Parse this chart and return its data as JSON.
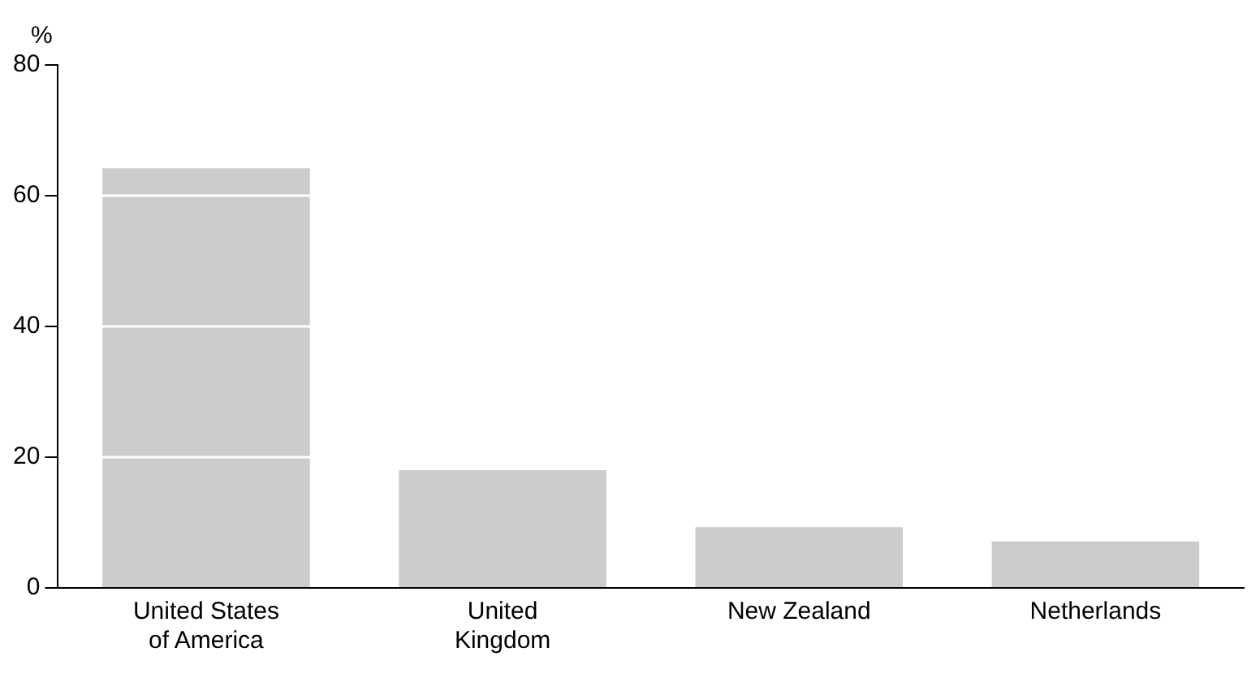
{
  "chart_data": {
    "type": "bar",
    "ylabel": "%",
    "categories": [
      "United States of America",
      "United Kingdom",
      "New Zealand",
      "Netherlands"
    ],
    "values": [
      64.2,
      18,
      9.3,
      7.1
    ],
    "color": "#cccccc",
    "ylim": [
      0,
      80
    ],
    "yticks": [
      0,
      20,
      40,
      60,
      80
    ],
    "grid": "y",
    "legend": false
  }
}
